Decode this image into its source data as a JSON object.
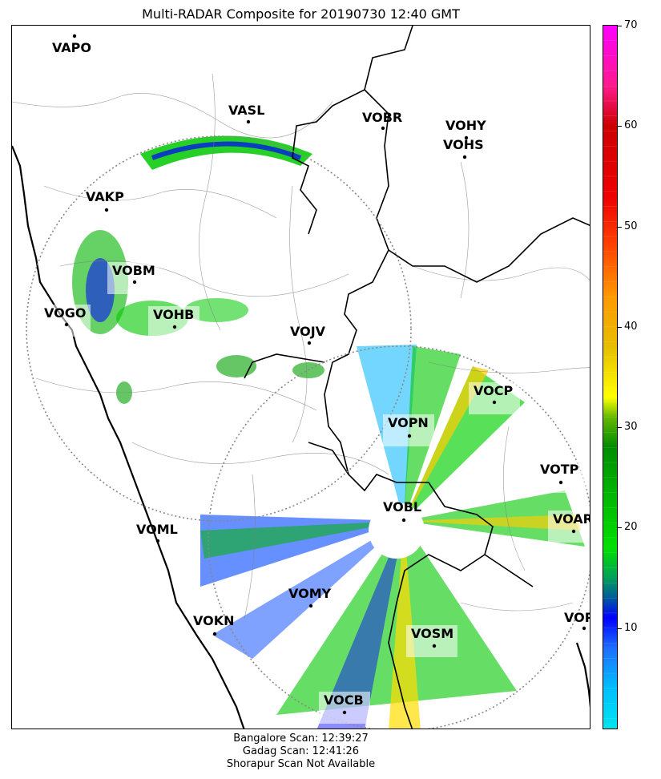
{
  "title": "Multi-RADAR Composite for 20190730 12:40 GMT",
  "colorbar": {
    "min": 0,
    "max": 70,
    "ticks": [
      "10",
      "20",
      "30",
      "40",
      "50",
      "60",
      "70"
    ],
    "tick_values": [
      10,
      20,
      30,
      40,
      50,
      60,
      70
    ],
    "stops": [
      {
        "v": 0,
        "c": "#00e5ee"
      },
      {
        "v": 4,
        "c": "#00bfff"
      },
      {
        "v": 8,
        "c": "#1e6fff"
      },
      {
        "v": 11,
        "c": "#0000ff"
      },
      {
        "v": 13,
        "c": "#005a9c"
      },
      {
        "v": 15,
        "c": "#00a05a"
      },
      {
        "v": 18,
        "c": "#00e000"
      },
      {
        "v": 24,
        "c": "#00b000"
      },
      {
        "v": 28,
        "c": "#008c00"
      },
      {
        "v": 31,
        "c": "#66b800"
      },
      {
        "v": 33,
        "c": "#ffff00"
      },
      {
        "v": 38,
        "c": "#e6be00"
      },
      {
        "v": 43,
        "c": "#ff9900"
      },
      {
        "v": 48,
        "c": "#ff4400"
      },
      {
        "v": 53,
        "c": "#ee0000"
      },
      {
        "v": 60,
        "c": "#cc0000"
      },
      {
        "v": 64,
        "c": "#ff1a8c"
      },
      {
        "v": 70,
        "c": "#ff00ff"
      }
    ]
  },
  "stations": [
    {
      "name": "VAPO"
    },
    {
      "name": "VASL"
    },
    {
      "name": "VOBR"
    },
    {
      "name": "VOHY"
    },
    {
      "name": "VOHS"
    },
    {
      "name": "VAKP"
    },
    {
      "name": "VOBM"
    },
    {
      "name": "VOGO"
    },
    {
      "name": "VOHB"
    },
    {
      "name": "VOJV"
    },
    {
      "name": "VOCP"
    },
    {
      "name": "VOPN"
    },
    {
      "name": "VOTP"
    },
    {
      "name": "VOBL"
    },
    {
      "name": "VOAR"
    },
    {
      "name": "VOML"
    },
    {
      "name": "VOMY"
    },
    {
      "name": "VOKN"
    },
    {
      "name": "VOPC"
    },
    {
      "name": "VOSM"
    },
    {
      "name": "VOCB"
    }
  ],
  "scan_info": [
    "Bangalore Scan: 12:39:27",
    "Gadag Scan: 12:41:26",
    "Shorapur Scan Not Available"
  ]
}
